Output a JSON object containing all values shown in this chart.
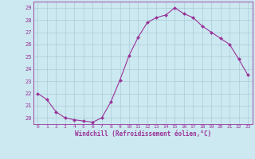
{
  "x": [
    0,
    1,
    2,
    3,
    4,
    5,
    6,
    7,
    8,
    9,
    10,
    11,
    12,
    13,
    14,
    15,
    16,
    17,
    18,
    19,
    20,
    21,
    22,
    23
  ],
  "y": [
    22.0,
    21.5,
    20.5,
    20.0,
    19.85,
    19.75,
    19.65,
    20.0,
    21.3,
    23.1,
    25.1,
    26.6,
    27.8,
    28.2,
    28.4,
    29.0,
    28.5,
    28.2,
    27.5,
    27.0,
    26.5,
    26.0,
    24.8,
    23.5
  ],
  "ylim": [
    19.5,
    29.5
  ],
  "yticks": [
    20,
    21,
    22,
    23,
    24,
    25,
    26,
    27,
    28,
    29
  ],
  "xticks": [
    0,
    1,
    2,
    3,
    4,
    5,
    6,
    7,
    8,
    9,
    10,
    11,
    12,
    13,
    14,
    15,
    16,
    17,
    18,
    19,
    20,
    21,
    22,
    23
  ],
  "xlabel": "Windchill (Refroidissement éolien,°C)",
  "line_color": "#993399",
  "marker_color": "#993399",
  "bg_color": "#cce8f0",
  "grid_color": "#aaccd8",
  "axis_color": "#993399",
  "tick_color": "#993399",
  "label_color": "#993399"
}
